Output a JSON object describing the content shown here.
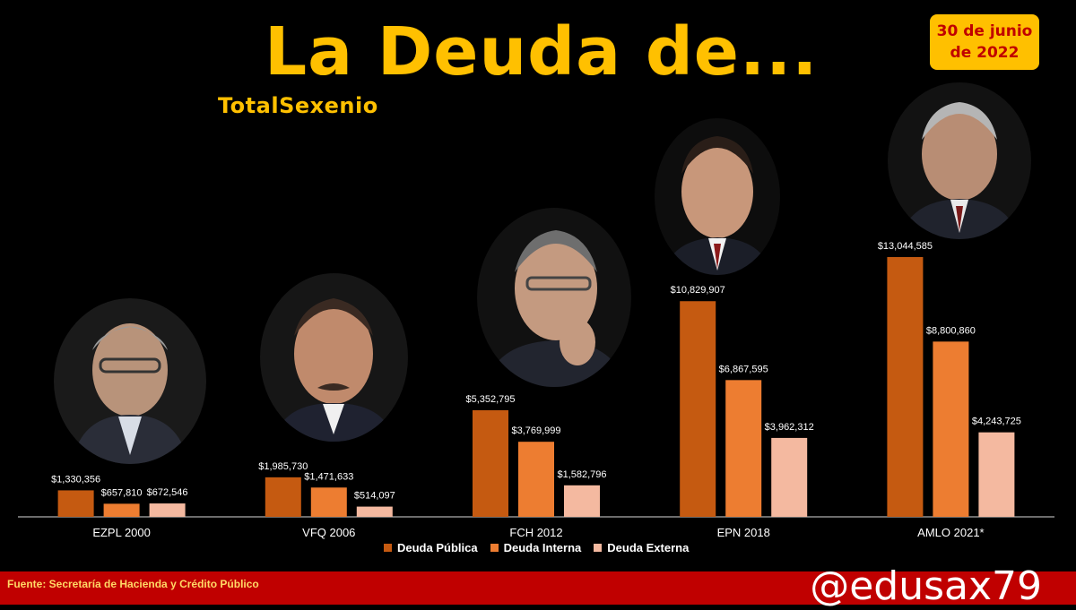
{
  "title": "La Deuda de...",
  "subtitle": "TotalSexenio",
  "date_badge": "30 de junio de 2022",
  "footer": {
    "source": "Fuente: Secretaría de Hacienda y Crédito Público",
    "handle": "@edusax79"
  },
  "colors": {
    "deuda_publica": "#c55a11",
    "deuda_interna": "#ed7d31",
    "deuda_externa": "#f4b9a0",
    "title": "#ffc000",
    "footer": "#c00000"
  },
  "chart_data": {
    "type": "bar",
    "title": "La Deuda de...",
    "subtitle": "TotalSexenio",
    "categories": [
      "EZPL 2000",
      "VFQ 2006",
      "FCH 2012",
      "EPN 2018",
      "AMLO 2021*"
    ],
    "series": [
      {
        "name": "Deuda Pública",
        "values": [
          1330356,
          1985730,
          5352795,
          10829907,
          13044585
        ],
        "labels": [
          "$1,330,356",
          "$1,985,730",
          "$5,352,795",
          "$10,829,907",
          "$13,044,585"
        ]
      },
      {
        "name": "Deuda Interna",
        "values": [
          657810,
          1471633,
          3769999,
          6867595,
          8800860
        ],
        "labels": [
          "$657,810",
          "$1,471,633",
          "$3,769,999",
          "$6,867,595",
          "$8,800,860"
        ]
      },
      {
        "name": "Deuda Externa",
        "values": [
          672546,
          514097,
          1582796,
          3962312,
          4243725
        ],
        "labels": [
          "$672,546",
          "$514,097",
          "$1,582,796",
          "$3,962,312",
          "$4,243,725"
        ]
      }
    ],
    "legend_position": "bottom",
    "grid": false,
    "ylim": [
      0,
      14000000
    ]
  }
}
